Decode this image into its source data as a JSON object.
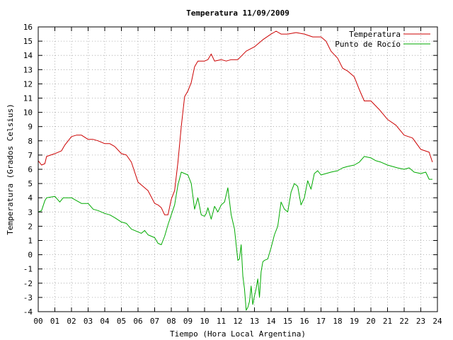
{
  "chart_data": {
    "type": "line",
    "title": "Temperatura 11/09/2009",
    "xlabel": "Tiempo (Hora Local Argentina)",
    "ylabel": "Temperatura (Grados Celsius)",
    "xlim": [
      0,
      24
    ],
    "ylim": [
      -4,
      16
    ],
    "xticks": [
      0,
      1,
      2,
      3,
      4,
      5,
      6,
      7,
      8,
      9,
      10,
      11,
      12,
      13,
      14,
      15,
      16,
      17,
      18,
      19,
      20,
      21,
      22,
      23,
      24
    ],
    "xtick_labels": [
      "00",
      "01",
      "02",
      "03",
      "04",
      "05",
      "06",
      "07",
      "08",
      "09",
      "10",
      "11",
      "12",
      "13",
      "14",
      "15",
      "16",
      "17",
      "18",
      "19",
      "20",
      "21",
      "22",
      "23",
      "24"
    ],
    "yticks": [
      -4,
      -3,
      -2,
      -1,
      0,
      1,
      2,
      3,
      4,
      5,
      6,
      7,
      8,
      9,
      10,
      11,
      12,
      13,
      14,
      15,
      16
    ],
    "grid": true,
    "legend_position": "top-right",
    "series": [
      {
        "name": "Temperatura",
        "color": "#cc0000",
        "x": [
          0,
          0.2,
          0.4,
          0.5,
          1.0,
          1.4,
          1.6,
          2.0,
          2.3,
          2.6,
          3.0,
          3.3,
          3.6,
          4.0,
          4.3,
          4.6,
          5.0,
          5.3,
          5.6,
          6.0,
          6.3,
          6.6,
          7.0,
          7.2,
          7.4,
          7.6,
          7.8,
          8.0,
          8.2,
          8.4,
          8.6,
          8.8,
          9.0,
          9.2,
          9.4,
          9.6,
          10.0,
          10.2,
          10.4,
          10.6,
          11.0,
          11.3,
          11.6,
          12.0,
          12.5,
          13.0,
          13.5,
          14.0,
          14.3,
          14.6,
          15.0,
          15.5,
          16.0,
          16.5,
          17.0,
          17.3,
          17.6,
          18.0,
          18.3,
          18.6,
          19.0,
          19.3,
          19.6,
          20.0,
          20.5,
          21.0,
          21.5,
          22.0,
          22.5,
          23.0,
          23.5,
          23.7
        ],
        "y": [
          6.6,
          6.3,
          6.4,
          6.9,
          7.1,
          7.3,
          7.7,
          8.3,
          8.4,
          8.4,
          8.1,
          8.1,
          8.0,
          7.8,
          7.8,
          7.6,
          7.1,
          7.0,
          6.5,
          5.1,
          4.8,
          4.5,
          3.6,
          3.5,
          3.3,
          2.8,
          2.8,
          3.9,
          4.5,
          6.5,
          9.0,
          11.1,
          11.5,
          12.1,
          13.2,
          13.6,
          13.6,
          13.7,
          14.1,
          13.6,
          13.7,
          13.6,
          13.7,
          13.7,
          14.3,
          14.6,
          15.1,
          15.5,
          15.7,
          15.5,
          15.5,
          15.6,
          15.5,
          15.3,
          15.3,
          15.0,
          14.3,
          13.8,
          13.1,
          12.9,
          12.5,
          11.6,
          10.8,
          10.8,
          10.2,
          9.5,
          9.1,
          8.4,
          8.2,
          7.4,
          7.2,
          6.5
        ]
      },
      {
        "name": "Punto de Rocío",
        "color": "#00aa00",
        "x": [
          0,
          0.2,
          0.4,
          0.5,
          1.0,
          1.3,
          1.5,
          2.0,
          2.3,
          2.6,
          3.0,
          3.3,
          3.6,
          4.0,
          4.3,
          4.6,
          5.0,
          5.3,
          5.6,
          6.0,
          6.2,
          6.4,
          6.6,
          7.0,
          7.2,
          7.4,
          7.6,
          7.8,
          8.0,
          8.2,
          8.4,
          8.6,
          8.8,
          9.0,
          9.2,
          9.4,
          9.6,
          9.8,
          10.0,
          10.1,
          10.2,
          10.4,
          10.6,
          10.8,
          11.0,
          11.2,
          11.4,
          11.6,
          11.8,
          12.0,
          12.1,
          12.2,
          12.3,
          12.4,
          12.5,
          12.6,
          12.7,
          12.8,
          12.9,
          13.0,
          13.1,
          13.2,
          13.3,
          13.4,
          13.5,
          13.6,
          13.8,
          14.0,
          14.2,
          14.4,
          14.6,
          14.8,
          15.0,
          15.2,
          15.4,
          15.6,
          15.8,
          16.0,
          16.2,
          16.4,
          16.6,
          16.8,
          17.0,
          17.3,
          17.6,
          18.0,
          18.3,
          18.6,
          19.0,
          19.3,
          19.6,
          20.0,
          20.3,
          20.6,
          21.0,
          21.3,
          21.6,
          22.0,
          22.3,
          22.6,
          23.0,
          23.3,
          23.5,
          23.7
        ],
        "y": [
          3.0,
          3.1,
          3.8,
          4.0,
          4.1,
          3.7,
          4.0,
          4.0,
          3.8,
          3.6,
          3.6,
          3.2,
          3.1,
          2.9,
          2.8,
          2.6,
          2.3,
          2.2,
          1.8,
          1.6,
          1.5,
          1.7,
          1.4,
          1.2,
          0.8,
          0.7,
          1.3,
          2.1,
          2.8,
          3.5,
          4.9,
          5.8,
          5.7,
          5.6,
          5.0,
          3.2,
          4.0,
          2.8,
          2.7,
          2.9,
          3.3,
          2.5,
          3.4,
          3.0,
          3.5,
          3.7,
          4.7,
          2.8,
          1.8,
          -0.4,
          -0.3,
          0.7,
          -1.5,
          -2.4,
          -3.9,
          -3.7,
          -3.3,
          -2.2,
          -3.5,
          -2.9,
          -2.4,
          -1.7,
          -3.0,
          -1.2,
          -0.5,
          -0.4,
          -0.3,
          0.5,
          1.4,
          2.0,
          3.7,
          3.2,
          3.0,
          4.4,
          5.0,
          4.8,
          3.5,
          4.0,
          5.2,
          4.6,
          5.7,
          5.9,
          5.6,
          5.7,
          5.8,
          5.9,
          6.1,
          6.2,
          6.3,
          6.5,
          6.9,
          6.8,
          6.6,
          6.5,
          6.3,
          6.2,
          6.1,
          6.0,
          6.1,
          5.8,
          5.7,
          5.8,
          5.3,
          5.3
        ]
      }
    ]
  }
}
